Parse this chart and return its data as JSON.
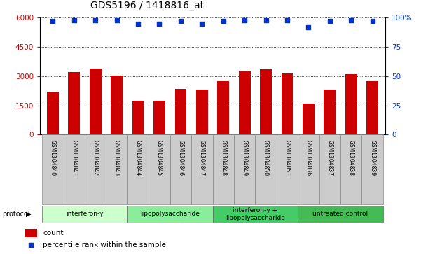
{
  "title": "GDS5196 / 1418816_at",
  "samples": [
    "GSM1304840",
    "GSM1304841",
    "GSM1304842",
    "GSM1304843",
    "GSM1304844",
    "GSM1304845",
    "GSM1304846",
    "GSM1304847",
    "GSM1304848",
    "GSM1304849",
    "GSM1304850",
    "GSM1304851",
    "GSM1304836",
    "GSM1304837",
    "GSM1304838",
    "GSM1304839"
  ],
  "counts": [
    2200,
    3200,
    3400,
    3050,
    1750,
    1750,
    2350,
    2300,
    2750,
    3300,
    3350,
    3150,
    1600,
    2300,
    3100,
    2750
  ],
  "percentiles": [
    97,
    98,
    98,
    98,
    95,
    95,
    97,
    95,
    97,
    98,
    98,
    98,
    92,
    97,
    98,
    97
  ],
  "left_yticks": [
    0,
    1500,
    3000,
    4500,
    6000
  ],
  "right_yticks": [
    0,
    25,
    50,
    75,
    100
  ],
  "ylim_left": [
    0,
    6000
  ],
  "ylim_right": [
    0,
    100
  ],
  "bar_color": "#cc0000",
  "dot_color": "#0033cc",
  "groups": [
    {
      "label": "interferon-γ",
      "start": 0,
      "end": 4,
      "color": "#ccffcc"
    },
    {
      "label": "lipopolysaccharide",
      "start": 4,
      "end": 8,
      "color": "#88ee99"
    },
    {
      "label": "interferon-γ +\nlipopolysaccharide",
      "start": 8,
      "end": 12,
      "color": "#44cc66"
    },
    {
      "label": "untreated control",
      "start": 12,
      "end": 16,
      "color": "#44bb55"
    }
  ],
  "protocol_label": "protocol",
  "legend_count": "count",
  "legend_percentile": "percentile rank within the sample",
  "tick_label_color": "#cc0000",
  "right_tick_color": "#0033cc",
  "title_fontsize": 10,
  "bar_width": 0.55,
  "xlabel_bg": "#cccccc",
  "xlabel_edge": "#888888"
}
